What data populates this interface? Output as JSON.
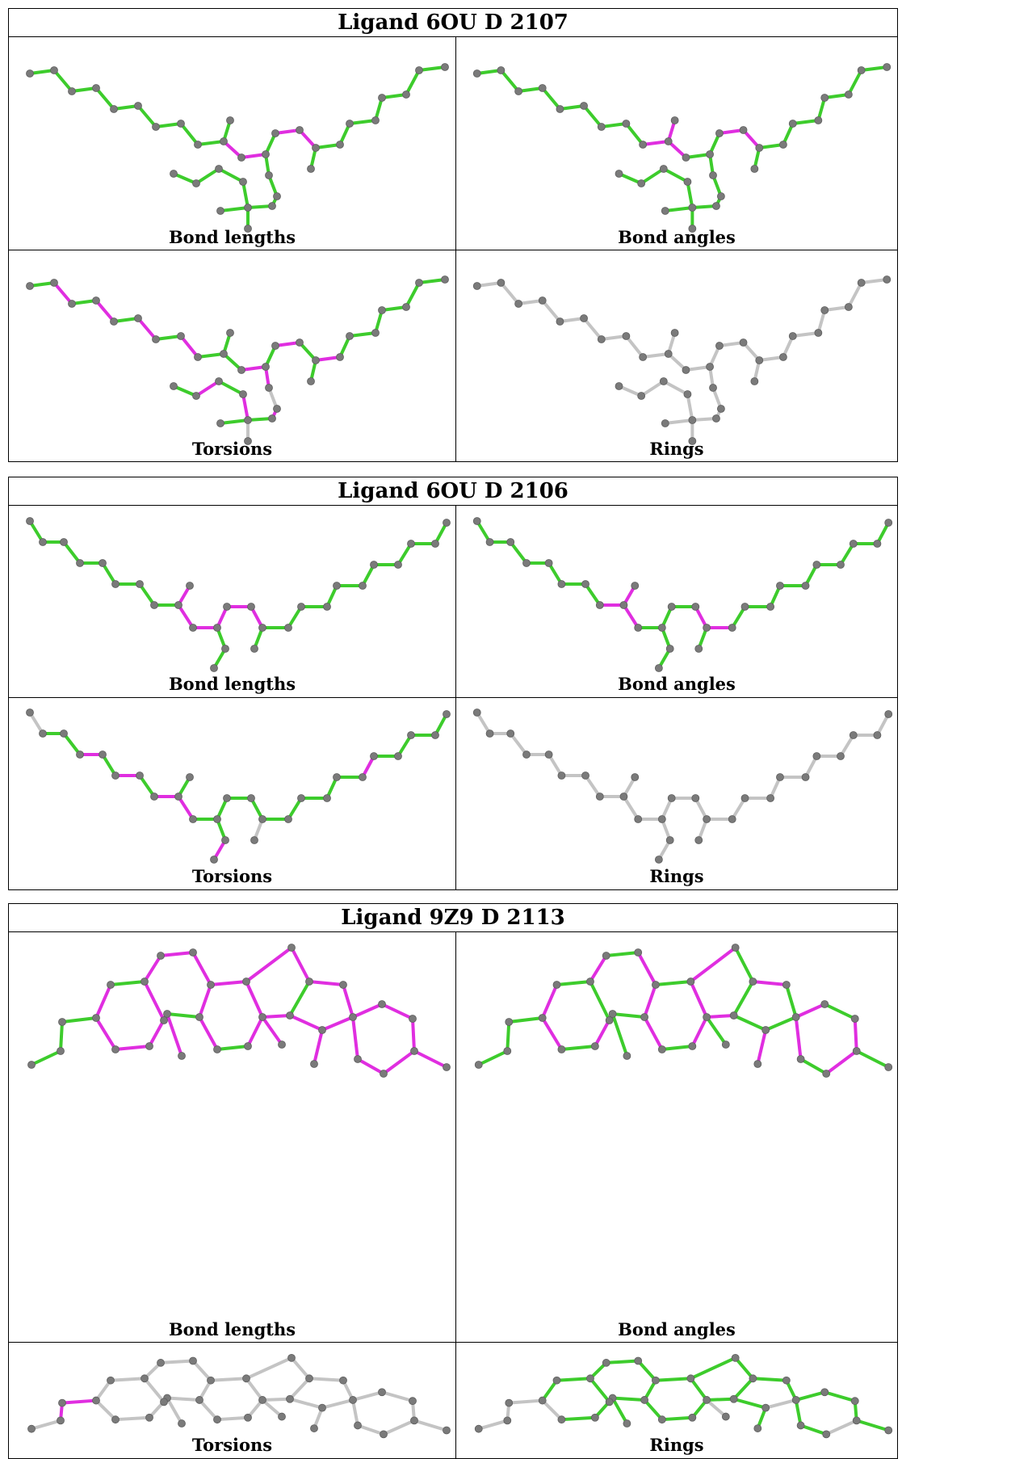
{
  "colors": {
    "violation": "#e02ee0",
    "ok": "#3dcc2c",
    "neutral": "#c4c4c4",
    "atom": "#7a7a7a"
  },
  "legend": {
    "violation_meaning": "magenta",
    "ok_meaning": "green",
    "unchecked_meaning": "grey"
  },
  "ligands": [
    {
      "title": "Ligand 6OU D 2107",
      "panels": [
        {
          "label": "Bond lengths",
          "style": "mixed"
        },
        {
          "label": "Bond angles",
          "style": "mixed"
        },
        {
          "label": "Torsions",
          "style": "mixed"
        },
        {
          "label": "Rings",
          "style": "grey"
        }
      ]
    },
    {
      "title": "Ligand 6OU D 2106",
      "panels": [
        {
          "label": "Bond lengths",
          "style": "mixed"
        },
        {
          "label": "Bond angles",
          "style": "mixed"
        },
        {
          "label": "Torsions",
          "style": "mixed"
        },
        {
          "label": "Rings",
          "style": "grey"
        }
      ]
    },
    {
      "title": "Ligand 9Z9 D 2113",
      "panels": [
        {
          "label": "Bond lengths",
          "style": "mixed"
        },
        {
          "label": "Bond angles",
          "style": "mixed"
        },
        {
          "label": "Torsions",
          "style": "mixed"
        },
        {
          "label": "Rings",
          "style": "mixed"
        }
      ]
    }
  ]
}
